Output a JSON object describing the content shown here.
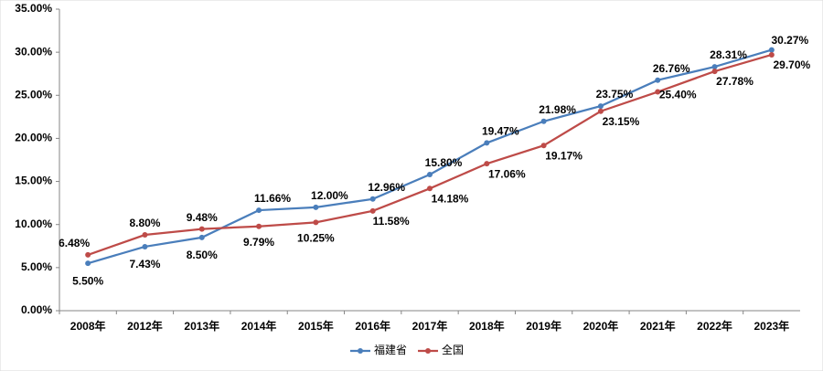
{
  "chart_data": {
    "type": "line",
    "categories": [
      "2008年",
      "2012年",
      "2013年",
      "2014年",
      "2015年",
      "2016年",
      "2017年",
      "2018年",
      "2019年",
      "2020年",
      "2021年",
      "2022年",
      "2023年"
    ],
    "series": [
      {
        "name": "福建省",
        "color": "#4a7ebb",
        "values": [
          5.5,
          7.43,
          8.5,
          11.66,
          12.0,
          12.96,
          15.8,
          19.47,
          21.98,
          23.75,
          26.76,
          28.31,
          30.27
        ],
        "value_labels": [
          "5.50%",
          "7.43%",
          "8.50%",
          "11.66%",
          "12.00%",
          "12.96%",
          "15.80%",
          "19.47%",
          "21.98%",
          "23.75%",
          "26.76%",
          "28.31%",
          "30.27%"
        ]
      },
      {
        "name": "全国",
        "color": "#be4b48",
        "values": [
          6.48,
          8.8,
          9.48,
          9.79,
          10.25,
          11.58,
          14.18,
          17.06,
          19.17,
          23.15,
          25.4,
          27.78,
          29.7
        ],
        "value_labels": [
          "6.48%",
          "8.80%",
          "9.48%",
          "9.79%",
          "10.25%",
          "11.58%",
          "14.18%",
          "17.06%",
          "19.17%",
          "23.15%",
          "25.40%",
          "27.78%",
          "29.70%"
        ]
      }
    ],
    "ylim": [
      0,
      35
    ],
    "yticks": [
      {
        "value": 0,
        "label": "0.00%"
      },
      {
        "value": 5,
        "label": "5.00%"
      },
      {
        "value": 10,
        "label": "10.00%"
      },
      {
        "value": 15,
        "label": "15.00%"
      },
      {
        "value": 20,
        "label": "20.00%"
      },
      {
        "value": 25,
        "label": "25.00%"
      },
      {
        "value": 30,
        "label": "30.00%"
      },
      {
        "value": 35,
        "label": "35.00%"
      }
    ],
    "grid": false,
    "legend": "bottom"
  }
}
